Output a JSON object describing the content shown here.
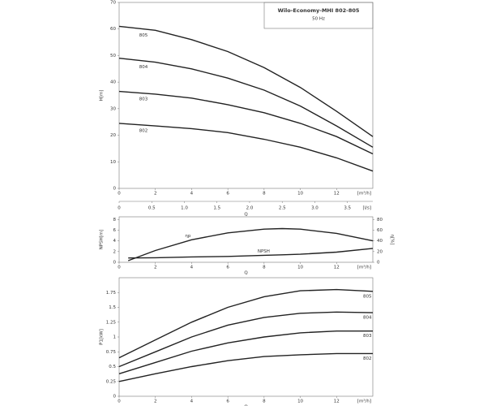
{
  "chart_data": [
    {
      "type": "line",
      "title": "Wilo-Economy-MHI 802-805",
      "subtitle": "50 Hz",
      "ylabel": "H[m]",
      "xlabel": "Q",
      "x_unit": "[m³/h]",
      "x2_unit": "[l/s]",
      "x": [
        0,
        2,
        4,
        6,
        8,
        10,
        12,
        14
      ],
      "xlim": [
        0,
        14
      ],
      "xticks": [
        0,
        2,
        4,
        6,
        8,
        10,
        12
      ],
      "x2lim": [
        0,
        3.889
      ],
      "x2ticks": [
        0,
        0.5,
        {
          "value": 1,
          "label": "1.0"
        },
        1.5,
        {
          "value": 2,
          "label": "2.0"
        },
        2.5,
        {
          "value": 3,
          "label": "3.0"
        },
        3.5
      ],
      "ylim": [
        0,
        70
      ],
      "yticks": [
        0,
        10,
        20,
        30,
        40,
        50,
        60,
        70
      ],
      "series": [
        {
          "name": "805",
          "color": "#222222",
          "values": [
            61,
            59.5,
            56,
            51.5,
            45.5,
            38,
            29,
            19.5
          ]
        },
        {
          "name": "804",
          "color": "#222222",
          "values": [
            49,
            47.5,
            45,
            41.5,
            37,
            31,
            23.5,
            15.5
          ]
        },
        {
          "name": "803",
          "color": "#222222",
          "values": [
            36.5,
            35.5,
            34,
            31.5,
            28.5,
            24.5,
            19.5,
            13
          ]
        },
        {
          "name": "802",
          "color": "#222222",
          "values": [
            24.5,
            23.5,
            22.5,
            21,
            18.5,
            15.5,
            11.5,
            6.5
          ]
        }
      ]
    },
    {
      "type": "line",
      "ylabel": "NPSH[m]",
      "y2label": "η[%]",
      "xlabel": "Q",
      "x_unit": "[m³/h]",
      "x": [
        0.5,
        2,
        4,
        6,
        8,
        9,
        10,
        12,
        14
      ],
      "xlim": [
        0,
        14
      ],
      "xticks": [
        0,
        2,
        4,
        6,
        8,
        10,
        12
      ],
      "ylim": [
        0,
        8.5
      ],
      "yticks": [
        0,
        2,
        4,
        6,
        8
      ],
      "y2lim": [
        0,
        85
      ],
      "y2ticks": [
        0,
        20,
        40,
        60,
        80
      ],
      "series": [
        {
          "name": "ηp",
          "color": "#222222",
          "axis": "y2",
          "values": [
            3,
            22,
            42,
            55,
            62,
            63,
            62,
            54,
            40
          ]
        },
        {
          "name": "NPSH",
          "color": "#222222",
          "values": [
            0.8,
            0.85,
            1.0,
            1.1,
            1.3,
            1.4,
            1.5,
            1.9,
            2.6
          ]
        }
      ]
    },
    {
      "type": "line",
      "ylabel": "P1[kW]",
      "xlabel": "Q",
      "x_unit": "[m³/h]",
      "x": [
        0,
        2,
        4,
        6,
        8,
        10,
        12,
        14
      ],
      "xlim": [
        0,
        14
      ],
      "xticks": [
        0,
        2,
        4,
        6,
        8,
        10,
        12
      ],
      "ylim": [
        0,
        2
      ],
      "yticks": [
        0,
        0.25,
        0.5,
        0.75,
        1,
        1.25,
        1.5,
        1.75
      ],
      "series": [
        {
          "name": "805",
          "color": "#222222",
          "values": [
            0.65,
            0.95,
            1.25,
            1.5,
            1.68,
            1.78,
            1.8,
            1.77
          ]
        },
        {
          "name": "804",
          "color": "#222222",
          "values": [
            0.5,
            0.75,
            1.0,
            1.2,
            1.33,
            1.4,
            1.42,
            1.41
          ]
        },
        {
          "name": "803",
          "color": "#222222",
          "values": [
            0.38,
            0.57,
            0.76,
            0.9,
            1.0,
            1.07,
            1.1,
            1.1
          ]
        },
        {
          "name": "802",
          "color": "#222222",
          "values": [
            0.25,
            0.38,
            0.5,
            0.6,
            0.67,
            0.7,
            0.72,
            0.72
          ]
        }
      ]
    }
  ]
}
